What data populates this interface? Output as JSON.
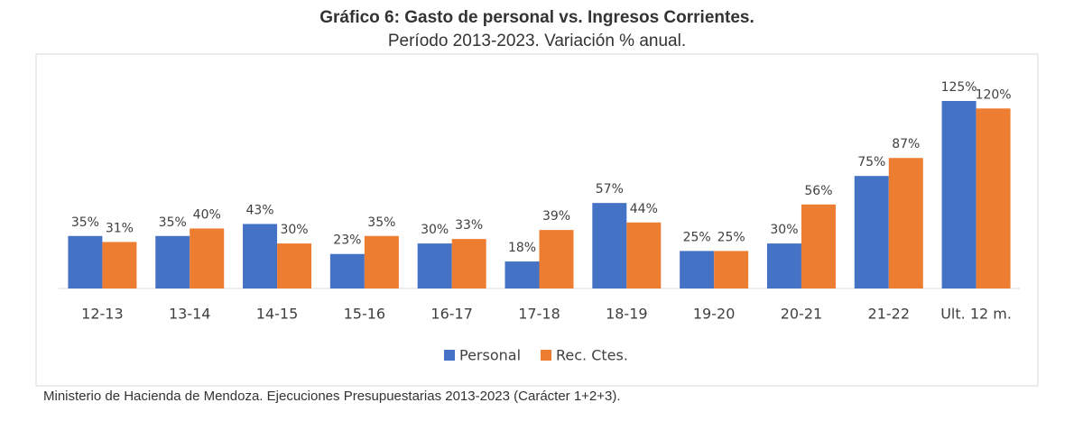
{
  "chart_data": {
    "type": "bar",
    "title": "Gráfico 6: Gasto de personal vs. Ingresos Corrientes.",
    "subtitle": "Período 2013-2023. Variación % anual.",
    "categories": [
      "12-13",
      "13-14",
      "14-15",
      "15-16",
      "16-17",
      "17-18",
      "18-19",
      "19-20",
      "20-21",
      "21-22",
      "Ult. 12 m."
    ],
    "series": [
      {
        "name": "Personal",
        "color": "#4472c4",
        "values": [
          35,
          35,
          43,
          23,
          30,
          18,
          57,
          25,
          30,
          75,
          125
        ],
        "value_labels": [
          "35%",
          "35%",
          "43%",
          "23%",
          "30%",
          "18%",
          "57%",
          "25%",
          "30%",
          "75%",
          "125%"
        ]
      },
      {
        "name": "Rec. Ctes.",
        "color": "#ed7d31",
        "values": [
          31,
          40,
          30,
          35,
          33,
          39,
          44,
          25,
          56,
          87,
          120
        ],
        "value_labels": [
          "31%",
          "40%",
          "30%",
          "35%",
          "33%",
          "39%",
          "44%",
          "25%",
          "56%",
          "87%",
          "120%"
        ]
      }
    ],
    "legend": "bottom",
    "source": "Ministerio de Hacienda de Mendoza. Ejecuciones Presupuestarias 2013-2023 (Carácter 1+2+3)."
  }
}
